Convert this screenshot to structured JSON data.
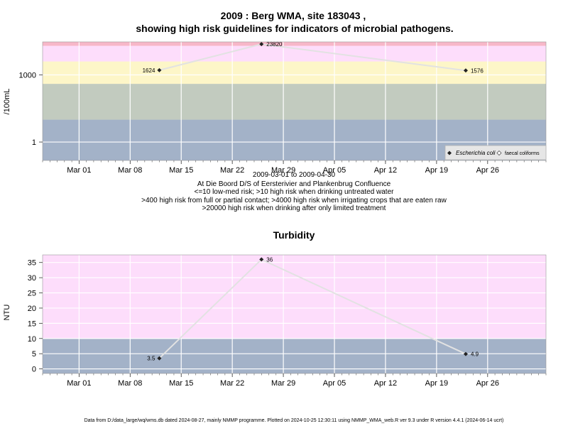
{
  "chart_data": [
    {
      "type": "line",
      "title": "2009 : Berg WMA, site 183043 ,",
      "title2": "showing high risk guidelines for indicators of microbial pathogens.",
      "ylabel": "/100mL",
      "yscale": "log",
      "ylim": [
        0.15,
        30000
      ],
      "yticks": [
        1,
        1000
      ],
      "ytick_labels": [
        "1",
        "1000"
      ],
      "xlim": [
        "2009-02-24",
        "2009-05-04"
      ],
      "xticks": [
        "2009-03-01",
        "2009-03-08",
        "2009-03-15",
        "2009-03-22",
        "2009-03-29",
        "2009-04-05",
        "2009-04-12",
        "2009-04-19",
        "2009-04-26"
      ],
      "xtick_labels": [
        "Mar 01",
        "Mar 08",
        "Mar 15",
        "Mar 22",
        "Mar 29",
        "Apr 05",
        "Apr 12",
        "Apr 19",
        "Apr 26"
      ],
      "grid": true,
      "bands": [
        {
          "from": 0.15,
          "to": 10,
          "color": "#a3b2c8"
        },
        {
          "from": 10,
          "to": 400,
          "color": "#c2cbbf"
        },
        {
          "from": 400,
          "to": 4000,
          "color": "#fdf6c8"
        },
        {
          "from": 4000,
          "to": 20000,
          "color": "#fdddfb"
        },
        {
          "from": 20000,
          "to": 30000,
          "color": "#f7b7c8"
        }
      ],
      "series": [
        {
          "name": "Escherichia coli",
          "x": [
            "2009-03-12",
            "2009-03-26",
            "2009-04-23"
          ],
          "y": [
            1624,
            23820,
            1576
          ],
          "labels": [
            "1624",
            "23820",
            "1576"
          ],
          "marker": "diamond"
        },
        {
          "name": "faecal coliforms",
          "x": [],
          "y": [],
          "marker": "open-diamond"
        }
      ],
      "legend_position": "bottom-right",
      "notes": [
        "2009-03-01 to 2009-04-30",
        "At Die Boord D/S of Eersterivier and Plankenbrug Confluence",
        "<=10 low-med risk; >10 high risk when drinking untreated water",
        ">400 high risk from full or partial contact; >4000 high risk when irrigating crops that are eaten raw",
        ">20000 high risk when drinking after only limited treatment"
      ]
    },
    {
      "type": "line",
      "title": "Turbidity",
      "ylabel": "NTU",
      "ylim": [
        -1.5,
        37.5
      ],
      "yticks": [
        0,
        5,
        10,
        15,
        20,
        25,
        30,
        35
      ],
      "xlim": [
        "2009-02-24",
        "2009-05-04"
      ],
      "xticks": [
        "2009-03-01",
        "2009-03-08",
        "2009-03-15",
        "2009-03-22",
        "2009-03-29",
        "2009-04-05",
        "2009-04-12",
        "2009-04-19",
        "2009-04-26"
      ],
      "xtick_labels": [
        "Mar 01",
        "Mar 08",
        "Mar 15",
        "Mar 22",
        "Mar 29",
        "Apr 05",
        "Apr 12",
        "Apr 19",
        "Apr 26"
      ],
      "grid": true,
      "bands": [
        {
          "from": -1.5,
          "to": 10,
          "color": "#a3b2c8"
        },
        {
          "from": 10,
          "to": 37.5,
          "color": "#fdddfb"
        }
      ],
      "series": [
        {
          "x": [
            "2009-03-12",
            "2009-03-26",
            "2009-04-23"
          ],
          "y": [
            3.5,
            36,
            4.9
          ],
          "labels": [
            "3.5",
            "36",
            "4.9"
          ],
          "marker": "diamond"
        }
      ]
    }
  ],
  "footer": "Data from D:/data_large/wq/wms.db dated 2024-08-27, mainly NMMP programme. Plotted on 2024-10-25 12:30:11 using NMMP_WMA_web.R ver 9.3 under R version 4.4.1 (2024-06-14 ucrt)"
}
